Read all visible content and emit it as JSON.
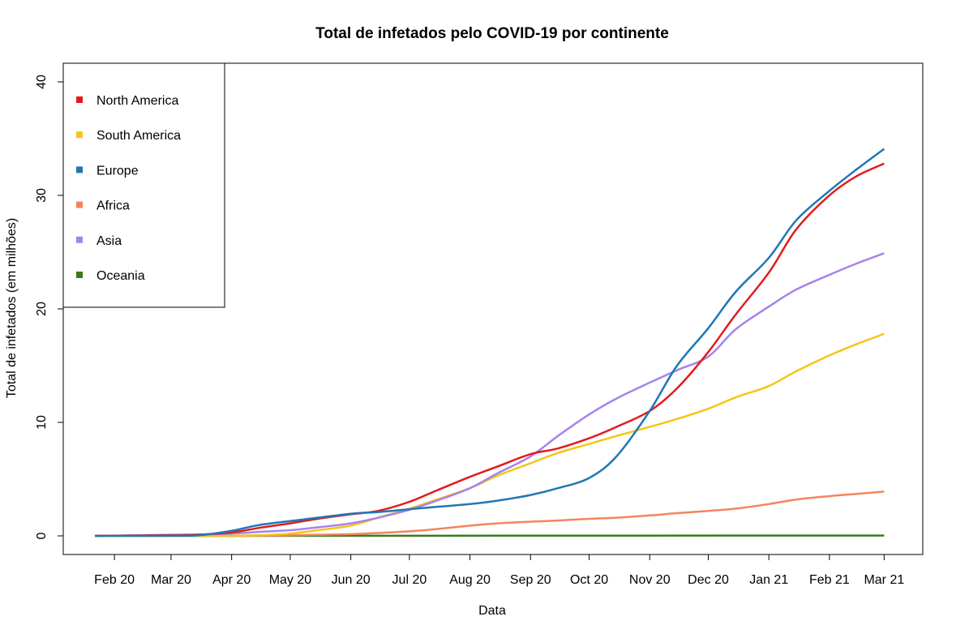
{
  "chart_data": {
    "type": "line",
    "title": "Total de infetados pelo COVID-19 por continente",
    "xlabel": "Data",
    "ylabel": "Total de infetados (em milhões)",
    "xlim": [
      "2020-01-22",
      "2021-03-05"
    ],
    "ylim": [
      0,
      40
    ],
    "y_ticks": [
      0,
      10,
      20,
      30,
      40
    ],
    "x_ticks": [
      {
        "label": "Feb 20",
        "date": "2020-02-01"
      },
      {
        "label": "Mar 20",
        "date": "2020-03-01"
      },
      {
        "label": "Apr 20",
        "date": "2020-04-01"
      },
      {
        "label": "May 20",
        "date": "2020-05-01"
      },
      {
        "label": "Jun 20",
        "date": "2020-06-01"
      },
      {
        "label": "Jul 20",
        "date": "2020-07-01"
      },
      {
        "label": "Aug 20",
        "date": "2020-08-01"
      },
      {
        "label": "Sep 20",
        "date": "2020-09-01"
      },
      {
        "label": "Oct 20",
        "date": "2020-10-01"
      },
      {
        "label": "Nov 20",
        "date": "2020-11-01"
      },
      {
        "label": "Dec 20",
        "date": "2020-12-01"
      },
      {
        "label": "Jan 21",
        "date": "2021-01-01"
      },
      {
        "label": "Feb 21",
        "date": "2021-02-01"
      },
      {
        "label": "Mar 21",
        "date": "2021-03-01"
      }
    ],
    "grid": false,
    "legend_position": "top-left",
    "series": [
      {
        "name": "North America",
        "color": "#E41A1C",
        "points": [
          [
            "2020-01-22",
            0
          ],
          [
            "2020-03-01",
            0.05
          ],
          [
            "2020-03-15",
            0.1
          ],
          [
            "2020-04-01",
            0.3
          ],
          [
            "2020-04-15",
            0.7
          ],
          [
            "2020-05-01",
            1.1
          ],
          [
            "2020-05-15",
            1.5
          ],
          [
            "2020-06-01",
            1.9
          ],
          [
            "2020-06-15",
            2.2
          ],
          [
            "2020-07-01",
            3.0
          ],
          [
            "2020-07-15",
            4.0
          ],
          [
            "2020-08-01",
            5.2
          ],
          [
            "2020-08-15",
            6.1
          ],
          [
            "2020-09-01",
            7.2
          ],
          [
            "2020-09-15",
            7.7
          ],
          [
            "2020-10-01",
            8.6
          ],
          [
            "2020-10-15",
            9.6
          ],
          [
            "2020-11-01",
            11.0
          ],
          [
            "2020-11-15",
            13.0
          ],
          [
            "2020-12-01",
            16.2
          ],
          [
            "2020-12-15",
            19.5
          ],
          [
            "2021-01-01",
            23.2
          ],
          [
            "2021-01-15",
            27.0
          ],
          [
            "2021-02-01",
            30.0
          ],
          [
            "2021-02-15",
            31.7
          ],
          [
            "2021-03-01",
            32.8
          ]
        ]
      },
      {
        "name": "South America",
        "color": "#F5C518",
        "points": [
          [
            "2020-01-22",
            0
          ],
          [
            "2020-03-15",
            0.01
          ],
          [
            "2020-04-01",
            0.02
          ],
          [
            "2020-04-15",
            0.05
          ],
          [
            "2020-05-01",
            0.2
          ],
          [
            "2020-05-15",
            0.5
          ],
          [
            "2020-06-01",
            0.9
          ],
          [
            "2020-06-15",
            1.6
          ],
          [
            "2020-07-01",
            2.4
          ],
          [
            "2020-07-15",
            3.2
          ],
          [
            "2020-08-01",
            4.2
          ],
          [
            "2020-08-15",
            5.3
          ],
          [
            "2020-09-01",
            6.4
          ],
          [
            "2020-09-15",
            7.3
          ],
          [
            "2020-10-01",
            8.1
          ],
          [
            "2020-10-15",
            8.8
          ],
          [
            "2020-11-01",
            9.6
          ],
          [
            "2020-11-15",
            10.3
          ],
          [
            "2020-12-01",
            11.2
          ],
          [
            "2020-12-15",
            12.2
          ],
          [
            "2021-01-01",
            13.2
          ],
          [
            "2021-01-15",
            14.5
          ],
          [
            "2021-02-01",
            15.9
          ],
          [
            "2021-02-15",
            16.9
          ],
          [
            "2021-03-01",
            17.8
          ]
        ]
      },
      {
        "name": "Europe",
        "color": "#1F78B4",
        "points": [
          [
            "2020-01-22",
            0
          ],
          [
            "2020-03-01",
            0.01
          ],
          [
            "2020-03-15",
            0.05
          ],
          [
            "2020-04-01",
            0.45
          ],
          [
            "2020-04-15",
            0.95
          ],
          [
            "2020-05-01",
            1.3
          ],
          [
            "2020-05-15",
            1.6
          ],
          [
            "2020-06-01",
            1.95
          ],
          [
            "2020-06-15",
            2.1
          ],
          [
            "2020-07-01",
            2.35
          ],
          [
            "2020-07-15",
            2.55
          ],
          [
            "2020-08-01",
            2.8
          ],
          [
            "2020-08-15",
            3.1
          ],
          [
            "2020-09-01",
            3.6
          ],
          [
            "2020-09-15",
            4.2
          ],
          [
            "2020-10-01",
            5.1
          ],
          [
            "2020-10-15",
            7.0
          ],
          [
            "2020-11-01",
            11.0
          ],
          [
            "2020-11-15",
            15.0
          ],
          [
            "2020-12-01",
            18.3
          ],
          [
            "2020-12-15",
            21.5
          ],
          [
            "2021-01-01",
            24.5
          ],
          [
            "2021-01-15",
            27.8
          ],
          [
            "2021-02-01",
            30.4
          ],
          [
            "2021-02-15",
            32.3
          ],
          [
            "2021-03-01",
            34.1
          ]
        ]
      },
      {
        "name": "Africa",
        "color": "#F4845F",
        "points": [
          [
            "2020-01-22",
            0
          ],
          [
            "2020-04-01",
            0.01
          ],
          [
            "2020-05-01",
            0.05
          ],
          [
            "2020-05-15",
            0.1
          ],
          [
            "2020-06-01",
            0.15
          ],
          [
            "2020-06-15",
            0.25
          ],
          [
            "2020-07-01",
            0.4
          ],
          [
            "2020-07-15",
            0.6
          ],
          [
            "2020-08-01",
            0.9
          ],
          [
            "2020-08-15",
            1.1
          ],
          [
            "2020-09-01",
            1.25
          ],
          [
            "2020-09-15",
            1.35
          ],
          [
            "2020-10-01",
            1.5
          ],
          [
            "2020-10-15",
            1.6
          ],
          [
            "2020-11-01",
            1.8
          ],
          [
            "2020-11-15",
            2.0
          ],
          [
            "2020-12-01",
            2.2
          ],
          [
            "2020-12-15",
            2.4
          ],
          [
            "2021-01-01",
            2.8
          ],
          [
            "2021-01-15",
            3.2
          ],
          [
            "2021-02-01",
            3.5
          ],
          [
            "2021-02-15",
            3.7
          ],
          [
            "2021-03-01",
            3.9
          ]
        ]
      },
      {
        "name": "Asia",
        "color": "#A782EC",
        "points": [
          [
            "2020-01-22",
            0
          ],
          [
            "2020-02-15",
            0.05
          ],
          [
            "2020-03-01",
            0.1
          ],
          [
            "2020-03-15",
            0.12
          ],
          [
            "2020-04-01",
            0.2
          ],
          [
            "2020-04-15",
            0.35
          ],
          [
            "2020-05-01",
            0.5
          ],
          [
            "2020-05-15",
            0.75
          ],
          [
            "2020-06-01",
            1.1
          ],
          [
            "2020-06-15",
            1.6
          ],
          [
            "2020-07-01",
            2.3
          ],
          [
            "2020-07-15",
            3.1
          ],
          [
            "2020-08-01",
            4.2
          ],
          [
            "2020-08-15",
            5.5
          ],
          [
            "2020-09-01",
            7.0
          ],
          [
            "2020-09-15",
            8.8
          ],
          [
            "2020-10-01",
            10.7
          ],
          [
            "2020-10-15",
            12.1
          ],
          [
            "2020-11-01",
            13.5
          ],
          [
            "2020-11-15",
            14.6
          ],
          [
            "2020-12-01",
            15.8
          ],
          [
            "2020-12-15",
            18.2
          ],
          [
            "2021-01-01",
            20.2
          ],
          [
            "2021-01-15",
            21.7
          ],
          [
            "2021-02-01",
            23.0
          ],
          [
            "2021-02-15",
            24.0
          ],
          [
            "2021-03-01",
            24.9
          ]
        ]
      },
      {
        "name": "Oceania",
        "color": "#3A7A1A",
        "points": [
          [
            "2020-01-22",
            0
          ],
          [
            "2020-06-01",
            0.01
          ],
          [
            "2021-03-01",
            0.03
          ]
        ]
      }
    ]
  }
}
